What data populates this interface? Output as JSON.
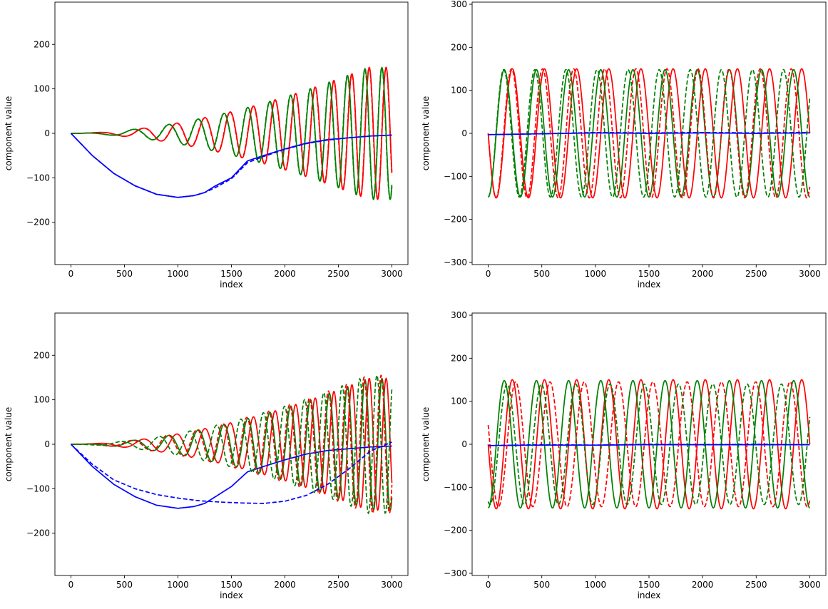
{
  "chart_data": [
    {
      "type": "line",
      "xlabel": "index",
      "ylabel": "component value",
      "xlim": [
        -150,
        3150
      ],
      "ylim": [
        -295,
        295
      ],
      "xticks": [
        0,
        500,
        1000,
        1500,
        2000,
        2500,
        3000
      ],
      "yticks": [
        -200,
        -100,
        0,
        100,
        200
      ],
      "grid": false,
      "colors": {
        "x": "#ff0000",
        "y": "#008000",
        "z": "#0000ff"
      },
      "series": [
        {
          "component": "x",
          "style": "solid",
          "amplitude_start": 0,
          "amplitude_end": 148,
          "phase": 0
        },
        {
          "component": "y",
          "style": "solid",
          "amplitude_start": 0,
          "amplitude_end": 148,
          "phase": 0.25
        },
        {
          "component": "z",
          "style": "solid",
          "points": [
            [
              0,
              0
            ],
            [
              200,
              -50
            ],
            [
              400,
              -90
            ],
            [
              600,
              -118
            ],
            [
              800,
              -137
            ],
            [
              1000,
              -144
            ],
            [
              1150,
              -140
            ],
            [
              1250,
              -133
            ],
            [
              1350,
              -118
            ],
            [
              1500,
              -100
            ],
            [
              1650,
              -62
            ],
            [
              1800,
              -50
            ],
            [
              2000,
              -35
            ],
            [
              2200,
              -22
            ],
            [
              2400,
              -14
            ],
            [
              2600,
              -10
            ],
            [
              2800,
              -6
            ],
            [
              3000,
              -4
            ]
          ]
        },
        {
          "component": "x",
          "style": "dashed",
          "amplitude_start": 0,
          "amplitude_end": 148,
          "phase": 0.01
        },
        {
          "component": "y",
          "style": "dashed",
          "amplitude_start": 0,
          "amplitude_end": 148,
          "phase": 0.26
        },
        {
          "component": "z",
          "style": "dashed",
          "points": [
            [
              0,
              0
            ],
            [
              200,
              -50
            ],
            [
              400,
              -90
            ],
            [
              600,
              -118
            ],
            [
              800,
              -137
            ],
            [
              1000,
              -144
            ],
            [
              1150,
              -140
            ],
            [
              1250,
              -133
            ],
            [
              1350,
              -122
            ],
            [
              1500,
              -102
            ],
            [
              1650,
              -66
            ],
            [
              1800,
              -52
            ],
            [
              2000,
              -36
            ],
            [
              2200,
              -23
            ],
            [
              2400,
              -15
            ],
            [
              2600,
              -10
            ],
            [
              2800,
              -6
            ],
            [
              3000,
              -4
            ]
          ]
        }
      ]
    },
    {
      "type": "line",
      "xlabel": "index",
      "ylabel": "component value",
      "xlim": [
        -150,
        3150
      ],
      "ylim": [
        -305,
        305
      ],
      "xticks": [
        0,
        500,
        1000,
        1500,
        2000,
        2500,
        3000
      ],
      "yticks": [
        -300,
        -200,
        -100,
        0,
        100,
        200,
        300
      ],
      "grid": false,
      "colors": {
        "x": "#ff0000",
        "y": "#008000",
        "z": "#0000ff"
      },
      "series": [
        {
          "component": "x",
          "style": "solid",
          "amplitude": 150,
          "period": 300,
          "phase": 0.5
        },
        {
          "component": "y",
          "style": "solid",
          "amplitude": 148,
          "period": 300,
          "phase": 0.75
        },
        {
          "component": "z",
          "style": "solid",
          "points": [
            [
              0,
              -3
            ],
            [
              500,
              -1
            ],
            [
              1000,
              1
            ],
            [
              1500,
              0
            ],
            [
              2000,
              1
            ],
            [
              2500,
              0
            ],
            [
              3000,
              1
            ]
          ]
        },
        {
          "component": "x",
          "style": "dashed",
          "amplitude": 150,
          "period": 290,
          "phase": 0.5
        },
        {
          "component": "y",
          "style": "dashed",
          "amplitude": 148,
          "period": 290,
          "phase": 0.75
        },
        {
          "component": "z",
          "style": "dashed",
          "points": [
            [
              0,
              -3
            ],
            [
              500,
              -1
            ],
            [
              1000,
              2
            ],
            [
              1500,
              1
            ],
            [
              2000,
              2
            ],
            [
              2500,
              1
            ],
            [
              3000,
              2
            ]
          ]
        }
      ]
    },
    {
      "type": "line",
      "xlabel": "index",
      "ylabel": "component value",
      "xlim": [
        -150,
        3150
      ],
      "ylim": [
        -295,
        295
      ],
      "xticks": [
        0,
        500,
        1000,
        1500,
        2000,
        2500,
        3000
      ],
      "yticks": [
        -200,
        -100,
        0,
        100,
        200
      ],
      "grid": false,
      "colors": {
        "x": "#ff0000",
        "y": "#008000",
        "z": "#0000ff"
      },
      "series": [
        {
          "component": "x",
          "style": "solid",
          "amplitude_start": 0,
          "amplitude_end": 148,
          "phase": 0
        },
        {
          "component": "y",
          "style": "solid",
          "amplitude_start": 0,
          "amplitude_end": 148,
          "phase": 0.25
        },
        {
          "component": "z",
          "style": "solid",
          "points": [
            [
              0,
              0
            ],
            [
              200,
              -50
            ],
            [
              400,
              -90
            ],
            [
              600,
              -118
            ],
            [
              800,
              -137
            ],
            [
              1000,
              -144
            ],
            [
              1150,
              -140
            ],
            [
              1250,
              -133
            ],
            [
              1350,
              -118
            ],
            [
              1500,
              -95
            ],
            [
              1650,
              -62
            ],
            [
              1800,
              -50
            ],
            [
              2000,
              -35
            ],
            [
              2200,
              -22
            ],
            [
              2400,
              -14
            ],
            [
              2600,
              -10
            ],
            [
              2800,
              -6
            ],
            [
              3000,
              -4
            ]
          ]
        },
        {
          "component": "x",
          "style": "dashed",
          "amplitude_start": 0,
          "amplitude_end": 155,
          "phase": 0.3
        },
        {
          "component": "y",
          "style": "dashed",
          "amplitude_start": 0,
          "amplitude_end": 155,
          "phase": 0.55
        },
        {
          "component": "z",
          "style": "dashed",
          "points": [
            [
              0,
              0
            ],
            [
              200,
              -45
            ],
            [
              400,
              -80
            ],
            [
              600,
              -100
            ],
            [
              800,
              -113
            ],
            [
              1000,
              -121
            ],
            [
              1200,
              -127
            ],
            [
              1400,
              -130
            ],
            [
              1600,
              -132
            ],
            [
              1800,
              -133
            ],
            [
              2000,
              -128
            ],
            [
              2200,
              -115
            ],
            [
              2400,
              -90
            ],
            [
              2600,
              -55
            ],
            [
              2800,
              -15
            ],
            [
              3000,
              5
            ]
          ]
        }
      ]
    },
    {
      "type": "line",
      "xlabel": "index",
      "ylabel": "component value",
      "xlim": [
        -150,
        3150
      ],
      "ylim": [
        -305,
        305
      ],
      "xticks": [
        0,
        500,
        1000,
        1500,
        2000,
        2500,
        3000
      ],
      "yticks": [
        -300,
        -200,
        -100,
        0,
        100,
        200,
        300
      ],
      "grid": false,
      "colors": {
        "x": "#ff0000",
        "y": "#008000",
        "z": "#0000ff"
      },
      "series": [
        {
          "component": "x",
          "style": "solid",
          "amplitude": 150,
          "period": 300,
          "phase": 0.5
        },
        {
          "component": "y",
          "style": "solid",
          "amplitude": 148,
          "period": 300,
          "phase": 0.75
        },
        {
          "component": "z",
          "style": "solid",
          "points": [
            [
              0,
              -3
            ],
            [
              500,
              -2
            ],
            [
              1000,
              -2
            ],
            [
              1500,
              -1
            ],
            [
              2000,
              -1
            ],
            [
              2500,
              -1
            ],
            [
              3000,
              -1
            ]
          ]
        },
        {
          "component": "x",
          "style": "dashed",
          "amplitude": 145,
          "period": 320,
          "phase": 0.45
        },
        {
          "component": "y",
          "style": "dashed",
          "amplitude": 140,
          "period": 320,
          "phase": 0.7
        },
        {
          "component": "z",
          "style": "dashed",
          "points": [
            [
              0,
              -3
            ],
            [
              500,
              -1
            ],
            [
              1000,
              -2
            ],
            [
              1500,
              0
            ],
            [
              2000,
              -1
            ],
            [
              2500,
              0
            ],
            [
              3000,
              -1
            ]
          ]
        }
      ]
    }
  ]
}
